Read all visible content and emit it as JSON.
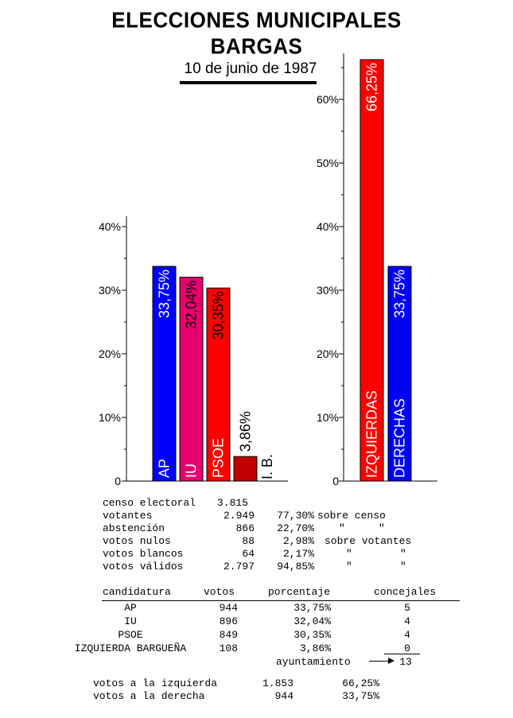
{
  "header": {
    "title": "ELECCIONES  MUNICIPALES",
    "subtitle": "BARGAS",
    "date": "10 de junio de 1987"
  },
  "chart_data": [
    {
      "type": "bar",
      "categories": [
        "AP",
        "IU",
        "PSOE",
        "I. B."
      ],
      "values": [
        33.75,
        32.04,
        30.35,
        3.86
      ],
      "value_labels": [
        "33,75%",
        "32,04%",
        "30,35%",
        "3,86%"
      ],
      "colors": [
        "#0000ff",
        "#e8006e",
        "#ff0000",
        "#c00000"
      ],
      "ylim": [
        0,
        40
      ],
      "yticks": [
        "0",
        "10%",
        "20%",
        "30%",
        "40%"
      ]
    },
    {
      "type": "bar",
      "categories": [
        "IZQUIERDAS",
        "DERECHAS"
      ],
      "values": [
        66.25,
        33.75
      ],
      "value_labels": [
        "66,25%",
        "33,75%"
      ],
      "colors": [
        "#ff0000",
        "#0000ff"
      ],
      "ylim": [
        0,
        60
      ],
      "yticks": [
        "0",
        "10%",
        "20%",
        "30%",
        "40%",
        "50%",
        "60%"
      ]
    }
  ],
  "stats": {
    "rows": [
      {
        "label": "censo electoral",
        "value": "3.815",
        "pct": "",
        "note": ""
      },
      {
        "label": "votantes",
        "value": "2.949",
        "pct": "77,30%",
        "note": "sobre censo"
      },
      {
        "label": "abstención",
        "value": "866",
        "pct": "22,70%",
        "note": "\"     \""
      },
      {
        "label": "votos nulos",
        "value": "88",
        "pct": "2,98%",
        "note": "sobre votantes"
      },
      {
        "label": "votos blancos",
        "value": "64",
        "pct": "2,17%",
        "note": "\"       \""
      },
      {
        "label": "votos válidos",
        "value": "2.797",
        "pct": "94,85%",
        "note": "\"       \""
      }
    ]
  },
  "results": {
    "headers": [
      "candidatura",
      "votos",
      "porcentaje",
      "concejales"
    ],
    "rows": [
      {
        "name": "AP",
        "votes": "944",
        "pct": "33,75%",
        "seats": "5"
      },
      {
        "name": "IU",
        "votes": "896",
        "pct": "32,04%",
        "seats": "4"
      },
      {
        "name": "PSOE",
        "votes": "849",
        "pct": "30,35%",
        "seats": "4"
      },
      {
        "name": "IZQUIERDA BARGUEÑA",
        "votes": "108",
        "pct": "3,86%",
        "seats": "0"
      }
    ],
    "total_label": "ayuntamiento",
    "total_seats": "13"
  },
  "summary": [
    {
      "label": "votos a la izquierda",
      "value": "1.853",
      "pct": "66,25%"
    },
    {
      "label": "votos a la derecha",
      "value": "944",
      "pct": "33,75%"
    }
  ]
}
